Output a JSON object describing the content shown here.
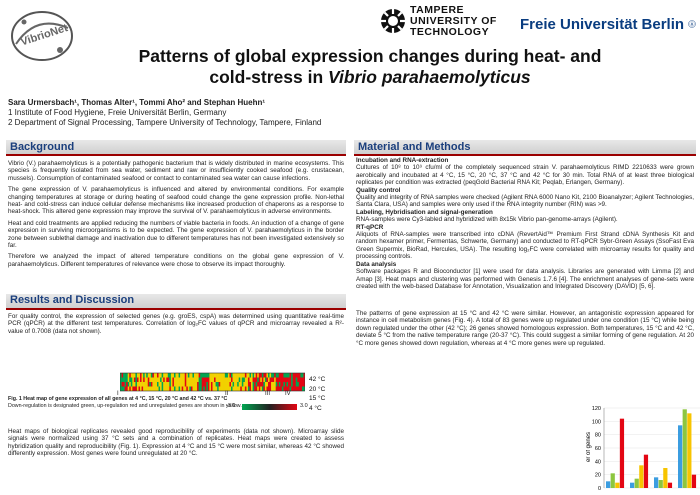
{
  "logos": {
    "vibrio": "VibrioNet",
    "tampere_lines": [
      "TAMPERE",
      "UNIVERSITY OF",
      "TECHNOLOGY"
    ],
    "fu": "Freie Universität",
    "fu_suffix": "Berlin"
  },
  "title": {
    "line1": "Patterns of global expression changes during heat- and",
    "line2_prefix": "cold-stress in ",
    "line2_italic": "Vibrio parahaemolyticus"
  },
  "authors": {
    "names": "Sara Urmersbach¹, Thomas Alter¹, Tommi Aho² and Stephan Huehn¹",
    "aff1": "1 Institute of Food Hygiene, Freie Universität Berlin, Germany",
    "aff2": "2 Department of Signal Processing, Tampere University of Technology, Tampere, Finland"
  },
  "sections": {
    "background": "Background",
    "methods": "Material and Methods",
    "results": "Results and Discussion"
  },
  "background": {
    "p1": "Vibrio (V.) parahaemolyticus is a potentially pathogenic bacterium that is widely distributed in marine ecosystems. This species is frequently isolated from sea water, sediment and raw or insufficiently cooked seafood (e.g. crustacean, mussels). Consumption of contaminated seafood or contact to contaminated sea water can cause infections.",
    "p2": "The gene expression of V. parahaemolyticus is influenced and altered by environmental conditions. For example changing temperatures at storage or during heating of seafood could change the gene expression profile. Non-lethal heat- and cold-stress can induce cellular defense mechanisms like increased production of chaperons as a response to heat-shock. This altered gene expression may improve the survival of V. parahaemolyticus in adverse environments.",
    "p3": "Heat and cold treatments are applied reducing the numbers of viable bacteria in foods. An induction of a change of gene expression in surviving microorganisms is to be expected. The gene expression of V. parahaemolyticus in the border zone between sublethal damage and inactivation due to different temperatures has not been investigated extensively so far.",
    "p4": "Therefore we analyzed the impact of altered temperature conditions on the global gene expression of V. parahaemolyticus. Different temperatures of relevance were chose to observe its impact thoroughly."
  },
  "methods": {
    "h1": "Incubation and RNA-extraction",
    "t1": "Cultures of 10⁸ to 10⁹ cfu/ml of the completely sequenced strain V. parahaemolyticus RIMD 2210633 were grown aerobically and incubated at 4 °C, 15 °C, 20 °C, 37 °C and 42 °C for 30 min. Total RNA of at least three biological replicates per condition was extracted (peqGold Bacterial RNA Kit; Peqlab, Erlangen, Germany).",
    "h2": "Quality control",
    "t2": "Quality and integrity of RNA samples were checked (Agilent RNA 6000 Nano Kit, 2100 Bioanalyzer; Agilent Technologies, Santa Clara, USA) and samples were only used if the RNA integrity number (RIN) was >9.",
    "h3": "Labeling, Hybridisation and signal-generation",
    "t3": "RNA-samples were Cy3-labled and hybridized with 8x15k Vibrio pan-genome-arrays (Agilent).",
    "h4": "RT-qPCR",
    "t4": "Aliquots of RNA-samples were transcribed into cDNA (RevertAid™ Premium First Strand cDNA Synthesis Kit and random hexamer primer, Fermentas, Schwerte, Germany) and conducted to RT-qPCR Sybr-Green Assays (SsoFast Eva Green Supermix, BioRad, Hercules, USA). The resulting log₂FC were correlated with microarray results for quality and processing controls.",
    "h5": "Data analysis",
    "t5": "Software packages R and Bioconductor [1] were used for data analysis. Libraries are generated with Limma [2] and Amap [3]. Heat maps and clustering was performed with Genesis 1.7.6 [4]. The enrichment analyses of gene-sets were created with the web-based Database for Annotation, Visualization and Integrated Discovery (DAVID) [5, 6]."
  },
  "results_left": {
    "p1": "For quality control, the expression of selected genes (e.g. groES, cspA) was determined using quantitative real-time PCR (qPCR) at the different test temperatures. Correlation of log₂FC values of qPCR and microarray revealed a R²-value of 0.7008 (data not shown).",
    "p2": "Heat maps of biological replicates revealed good reproducibility of experiments (data not shown). Microarray slide signals were normalized using 37 °C sets and a combination of replicates. Heat maps were created to assess hybridization quality and reproducibility (Fig. 1). Expression at 4 °C and 15 °C were most similar, whereas 42 °C showed differently expression. Most genes were found unregulated at 20 °C."
  },
  "results_right": {
    "p1": "The patterns of gene expression at 15 °C and 42 °C were similar. However, an antagonistic expression appeared for instance in cell metabolism genes (Fig. 4). A total of 83 genes were up regulated under one condition (15 °C) while being down regulated under the other (42 °C); 26 genes showed homologous expression. Both temperatures, 15 °C and 42 °C, deviate 5 °C from the native temperature range (20-37 °C). This could suggest a similar forming of gene regulation. At 20 °C more genes showed down regulation, whereas at 4 °C more genes were up regulated."
  },
  "figure1": {
    "caption_bold": "Fig. 1 Heat map of gene expression of all genes at 4 °C, 15 °C, 20 °C and 42 °C vs. 37 °C",
    "caption_rest": "Down-regulation is designated green, up-regulation red and unregulated genes are shown in yellow.",
    "row_labels": [
      "42 °C",
      "20 °C",
      "15 °C",
      "4 °C"
    ],
    "markers": [
      "I",
      "II",
      "III",
      "IV"
    ],
    "legend_min": "-3.0",
    "legend_max": "3.0",
    "colors": {
      "down": "#00a651",
      "up": "#e30613",
      "neutral": "#f2d100"
    }
  },
  "chart_data": {
    "type": "bar",
    "ylabel": "er of genes",
    "ylim": [
      0,
      120
    ],
    "yticks": [
      0,
      20,
      40,
      60,
      80,
      100,
      120
    ],
    "groups": [
      {
        "values": [
          10,
          22,
          8,
          104
        ]
      },
      {
        "values": [
          8,
          14,
          34,
          50
        ]
      },
      {
        "values": [
          16,
          12,
          30,
          8
        ]
      },
      {
        "values": [
          94,
          118,
          112,
          20
        ]
      }
    ],
    "bar_colors": [
      "#3b9de0",
      "#8dc63f",
      "#f7c400",
      "#e30613"
    ]
  }
}
